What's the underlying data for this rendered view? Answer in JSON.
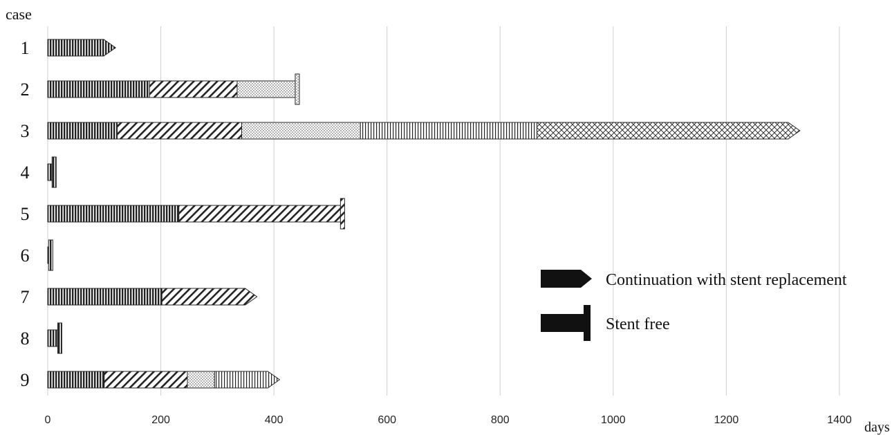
{
  "chart_data": {
    "type": "bar",
    "orientation": "horizontal",
    "stacked": true,
    "y_title": "case",
    "x_unit_label": "days",
    "xlim": [
      0,
      1400
    ],
    "x_ticks": [
      0,
      200,
      400,
      600,
      800,
      1000,
      1200,
      1400
    ],
    "grid": "vertical",
    "legend_position": "right",
    "legend": [
      {
        "label": "Continuation with stent replacement",
        "marker": "arrow"
      },
      {
        "label": "Stent free",
        "marker": "stop"
      }
    ],
    "cases": [
      {
        "label": "1",
        "segments": [
          120
        ],
        "end": "arrow"
      },
      {
        "label": "2",
        "segments": [
          180,
          155,
          110
        ],
        "end": "stop"
      },
      {
        "label": "3",
        "segments": [
          123,
          220,
          210,
          312,
          465
        ],
        "end": "arrow"
      },
      {
        "label": "4",
        "segments": [
          15
        ],
        "end": "stop"
      },
      {
        "label": "5",
        "segments": [
          232,
          293
        ],
        "end": "stop"
      },
      {
        "label": "6",
        "segments": [
          9
        ],
        "end": "stop"
      },
      {
        "label": "7",
        "segments": [
          202,
          168
        ],
        "end": "arrow"
      },
      {
        "label": "8",
        "segments": [
          25
        ],
        "end": "stop"
      },
      {
        "label": "9",
        "segments": [
          100,
          147,
          48,
          115
        ],
        "end": "arrow"
      }
    ],
    "segment_patterns": [
      "vertical-lines",
      "diagonal-lines",
      "dots",
      "vertical-lines-light",
      "crosshatch"
    ]
  }
}
